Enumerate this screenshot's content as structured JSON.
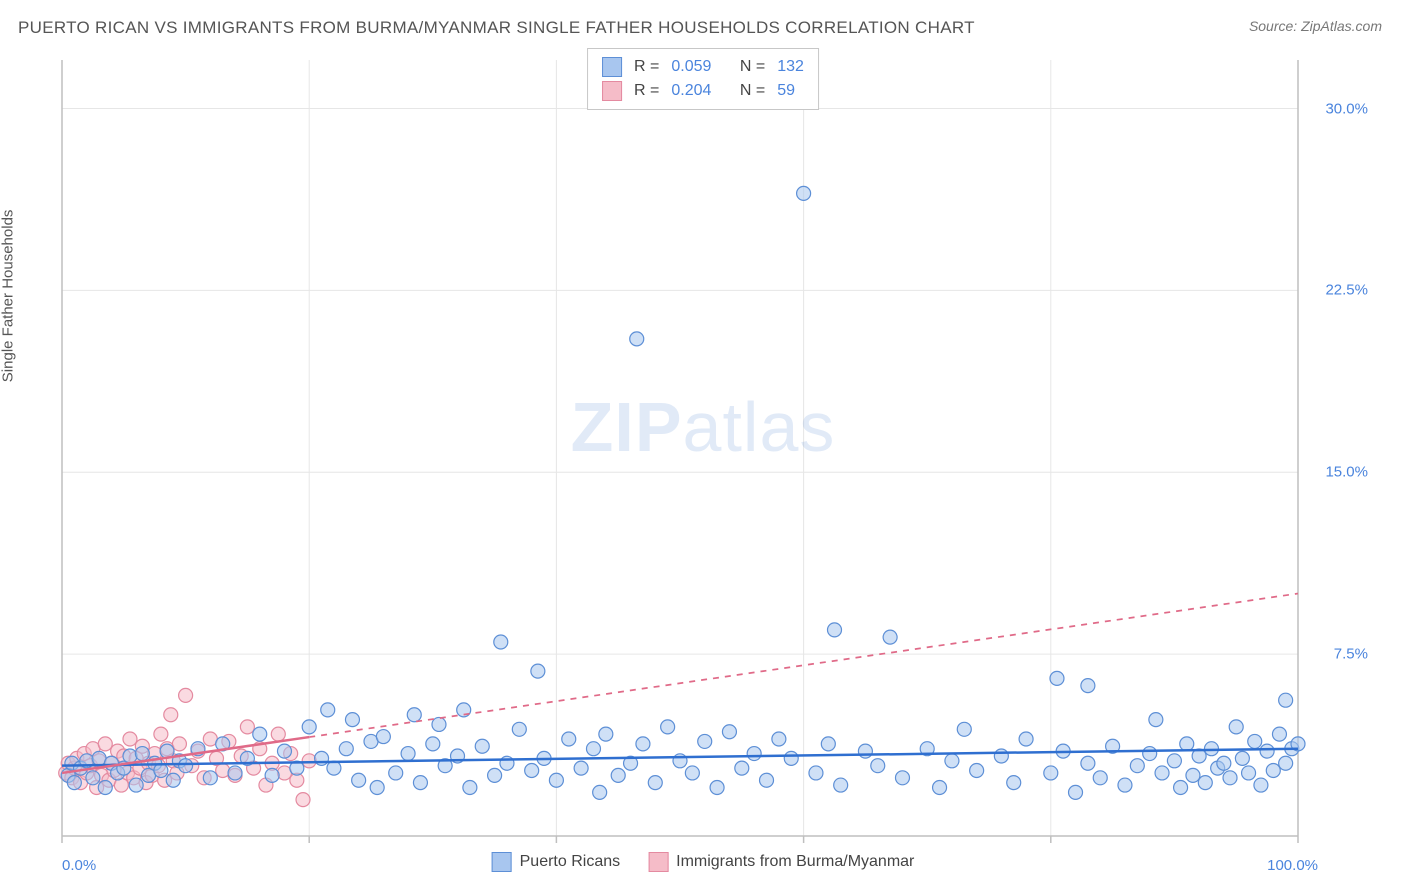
{
  "header": {
    "title": "PUERTO RICAN VS IMMIGRANTS FROM BURMA/MYANMAR SINGLE FATHER HOUSEHOLDS CORRELATION CHART",
    "source": "Source: ZipAtlas.com"
  },
  "watermark": {
    "zip": "ZIP",
    "atlas": "atlas"
  },
  "chart": {
    "type": "scatter",
    "y_axis_label": "Single Father Households",
    "x_min": 0,
    "x_max": 100,
    "y_min": 0,
    "y_max": 32,
    "x_tick_positions": [
      0,
      20,
      40,
      60,
      80,
      100
    ],
    "y_ticks": [
      {
        "v": 7.5,
        "label": "7.5%"
      },
      {
        "v": 15.0,
        "label": "15.0%"
      },
      {
        "v": 22.5,
        "label": "22.5%"
      },
      {
        "v": 30.0,
        "label": "30.0%"
      }
    ],
    "x_start_label": "0.0%",
    "x_end_label": "100.0%",
    "plot_background": "#ffffff",
    "grid_color": "#e6e6e6",
    "axis_color": "#bfbfbf",
    "tick_label_color": "#4a84dd",
    "marker_radius": 7,
    "marker_stroke_width": 1.2,
    "marker_opacity": 0.55,
    "series": [
      {
        "id": "puerto_ricans",
        "name": "Puerto Ricans",
        "fill": "#a8c6ef",
        "stroke": "#5d8fd6",
        "R": "0.059",
        "N": "132",
        "trend": {
          "x1": 0,
          "y1": 2.9,
          "x2": 100,
          "y2": 3.6,
          "color": "#2f6fd0",
          "width": 2.5,
          "dash": "none",
          "solid_until_x": 100
        },
        "points": [
          [
            0.5,
            2.5
          ],
          [
            0.8,
            3.0
          ],
          [
            1.0,
            2.2
          ],
          [
            1.5,
            2.8
          ],
          [
            2.0,
            3.1
          ],
          [
            2.5,
            2.4
          ],
          [
            3.0,
            3.2
          ],
          [
            3.5,
            2.0
          ],
          [
            4.0,
            3.0
          ],
          [
            4.5,
            2.6
          ],
          [
            5.0,
            2.8
          ],
          [
            5.5,
            3.3
          ],
          [
            6.0,
            2.1
          ],
          [
            6.5,
            3.4
          ],
          [
            7.0,
            2.5
          ],
          [
            7.5,
            3.0
          ],
          [
            8.0,
            2.7
          ],
          [
            8.5,
            3.5
          ],
          [
            9.0,
            2.3
          ],
          [
            9.5,
            3.1
          ],
          [
            10,
            2.9
          ],
          [
            11,
            3.6
          ],
          [
            12,
            2.4
          ],
          [
            13,
            3.8
          ],
          [
            14,
            2.6
          ],
          [
            15,
            3.2
          ],
          [
            16,
            4.2
          ],
          [
            17,
            2.5
          ],
          [
            18,
            3.5
          ],
          [
            19,
            2.8
          ],
          [
            20,
            4.5
          ],
          [
            21,
            3.2
          ],
          [
            21.5,
            5.2
          ],
          [
            22,
            2.8
          ],
          [
            23,
            3.6
          ],
          [
            23.5,
            4.8
          ],
          [
            24,
            2.3
          ],
          [
            25,
            3.9
          ],
          [
            25.5,
            2.0
          ],
          [
            26,
            4.1
          ],
          [
            27,
            2.6
          ],
          [
            28,
            3.4
          ],
          [
            28.5,
            5.0
          ],
          [
            29,
            2.2
          ],
          [
            30,
            3.8
          ],
          [
            30.5,
            4.6
          ],
          [
            31,
            2.9
          ],
          [
            32,
            3.3
          ],
          [
            32.5,
            5.2
          ],
          [
            33,
            2.0
          ],
          [
            34,
            3.7
          ],
          [
            35,
            2.5
          ],
          [
            35.5,
            8.0
          ],
          [
            36,
            3.0
          ],
          [
            37,
            4.4
          ],
          [
            38,
            2.7
          ],
          [
            38.5,
            6.8
          ],
          [
            39,
            3.2
          ],
          [
            40,
            2.3
          ],
          [
            41,
            4.0
          ],
          [
            42,
            2.8
          ],
          [
            43,
            3.6
          ],
          [
            43.5,
            1.8
          ],
          [
            44,
            4.2
          ],
          [
            45,
            2.5
          ],
          [
            46,
            3.0
          ],
          [
            46.5,
            20.5
          ],
          [
            47,
            3.8
          ],
          [
            48,
            2.2
          ],
          [
            49,
            4.5
          ],
          [
            50,
            3.1
          ],
          [
            51,
            2.6
          ],
          [
            52,
            3.9
          ],
          [
            53,
            2.0
          ],
          [
            54,
            4.3
          ],
          [
            55,
            2.8
          ],
          [
            56,
            3.4
          ],
          [
            57,
            2.3
          ],
          [
            58,
            4.0
          ],
          [
            59,
            3.2
          ],
          [
            60,
            26.5
          ],
          [
            61,
            2.6
          ],
          [
            62,
            3.8
          ],
          [
            62.5,
            8.5
          ],
          [
            63,
            2.1
          ],
          [
            65,
            3.5
          ],
          [
            66,
            2.9
          ],
          [
            67,
            8.2
          ],
          [
            68,
            2.4
          ],
          [
            70,
            3.6
          ],
          [
            71,
            2.0
          ],
          [
            72,
            3.1
          ],
          [
            73,
            4.4
          ],
          [
            74,
            2.7
          ],
          [
            76,
            3.3
          ],
          [
            77,
            2.2
          ],
          [
            78,
            4.0
          ],
          [
            80,
            2.6
          ],
          [
            80.5,
            6.5
          ],
          [
            81,
            3.5
          ],
          [
            82,
            1.8
          ],
          [
            83,
            3.0
          ],
          [
            83,
            6.2
          ],
          [
            84,
            2.4
          ],
          [
            85,
            3.7
          ],
          [
            86,
            2.1
          ],
          [
            87,
            2.9
          ],
          [
            88,
            3.4
          ],
          [
            88.5,
            4.8
          ],
          [
            89,
            2.6
          ],
          [
            90,
            3.1
          ],
          [
            90.5,
            2.0
          ],
          [
            91,
            3.8
          ],
          [
            91.5,
            2.5
          ],
          [
            92,
            3.3
          ],
          [
            92.5,
            2.2
          ],
          [
            93,
            3.6
          ],
          [
            93.5,
            2.8
          ],
          [
            94,
            3.0
          ],
          [
            94.5,
            2.4
          ],
          [
            95,
            4.5
          ],
          [
            95.5,
            3.2
          ],
          [
            96,
            2.6
          ],
          [
            96.5,
            3.9
          ],
          [
            97,
            2.1
          ],
          [
            97.5,
            3.5
          ],
          [
            98,
            2.7
          ],
          [
            98.5,
            4.2
          ],
          [
            99,
            3.0
          ],
          [
            99,
            5.6
          ],
          [
            99.5,
            3.6
          ],
          [
            100,
            3.8
          ]
        ]
      },
      {
        "id": "burma",
        "name": "Immigrants from Burma/Myanmar",
        "fill": "#f5bcc8",
        "stroke": "#e48aa0",
        "R": "0.204",
        "N": "59",
        "trend": {
          "x1": 0,
          "y1": 2.6,
          "x2": 100,
          "y2": 10.0,
          "color": "#e06a88",
          "width": 2.5,
          "dash": "6,6",
          "solid_until_x": 20
        },
        "points": [
          [
            0.3,
            2.6
          ],
          [
            0.5,
            3.0
          ],
          [
            0.8,
            2.4
          ],
          [
            1.0,
            2.8
          ],
          [
            1.2,
            3.2
          ],
          [
            1.5,
            2.2
          ],
          [
            1.8,
            3.4
          ],
          [
            2.0,
            2.6
          ],
          [
            2.3,
            2.9
          ],
          [
            2.5,
            3.6
          ],
          [
            2.8,
            2.0
          ],
          [
            3.0,
            3.1
          ],
          [
            3.2,
            2.5
          ],
          [
            3.5,
            3.8
          ],
          [
            3.8,
            2.3
          ],
          [
            4.0,
            3.0
          ],
          [
            4.2,
            2.7
          ],
          [
            4.5,
            3.5
          ],
          [
            4.8,
            2.1
          ],
          [
            5.0,
            3.3
          ],
          [
            5.3,
            2.6
          ],
          [
            5.5,
            4.0
          ],
          [
            5.8,
            2.4
          ],
          [
            6.0,
            3.2
          ],
          [
            6.3,
            2.8
          ],
          [
            6.5,
            3.7
          ],
          [
            6.8,
            2.2
          ],
          [
            7.0,
            3.0
          ],
          [
            7.3,
            2.5
          ],
          [
            7.5,
            3.4
          ],
          [
            7.8,
            2.9
          ],
          [
            8.0,
            4.2
          ],
          [
            8.3,
            2.3
          ],
          [
            8.5,
            3.6
          ],
          [
            8.8,
            5.0
          ],
          [
            9.0,
            3.1
          ],
          [
            9.3,
            2.6
          ],
          [
            9.5,
            3.8
          ],
          [
            10,
            5.8
          ],
          [
            10.5,
            2.9
          ],
          [
            11,
            3.5
          ],
          [
            11.5,
            2.4
          ],
          [
            12,
            4.0
          ],
          [
            12.5,
            3.2
          ],
          [
            13,
            2.7
          ],
          [
            13.5,
            3.9
          ],
          [
            14,
            2.5
          ],
          [
            14.5,
            3.3
          ],
          [
            15,
            4.5
          ],
          [
            15.5,
            2.8
          ],
          [
            16,
            3.6
          ],
          [
            16.5,
            2.1
          ],
          [
            17,
            3.0
          ],
          [
            17.5,
            4.2
          ],
          [
            18,
            2.6
          ],
          [
            18.5,
            3.4
          ],
          [
            19,
            2.3
          ],
          [
            19.5,
            1.5
          ],
          [
            20,
            3.1
          ]
        ]
      }
    ],
    "legend_top": {
      "R_label": "R =",
      "N_label": "N ="
    },
    "legend_bottom": [
      {
        "series_id": "puerto_ricans"
      },
      {
        "series_id": "burma"
      }
    ]
  }
}
